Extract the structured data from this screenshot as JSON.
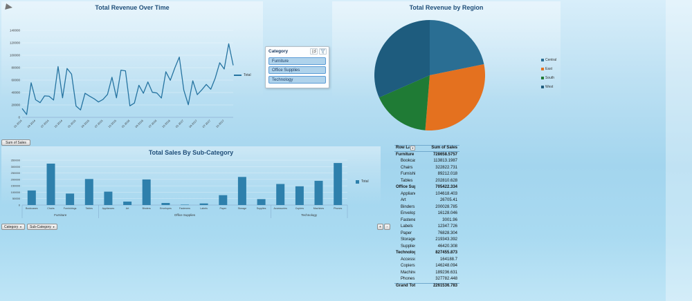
{
  "toolbar": {
    "sum_of_sales": "Sum of Sales",
    "category": "Category",
    "subcategory": "Sub-Category",
    "plus": "+",
    "minus": "-"
  },
  "slicer": {
    "title": "Category",
    "items": [
      "Furniture",
      "Office Supplies",
      "Technology"
    ]
  },
  "pivot": {
    "headers": [
      "Row Labels",
      "Sum of Sales"
    ],
    "rows": [
      {
        "label": "Furniture",
        "value": "728658.5757",
        "bold": true
      },
      {
        "label": "Bookcases",
        "value": "113813.1987",
        "indent": true
      },
      {
        "label": "Chairs",
        "value": "322822.731",
        "indent": true
      },
      {
        "label": "Furnishings",
        "value": "89212.018",
        "indent": true
      },
      {
        "label": "Tables",
        "value": "202810.628",
        "indent": true
      },
      {
        "label": "Office Supplies",
        "value": "705422.334",
        "bold": true
      },
      {
        "label": "Appliances",
        "value": "104618.403",
        "indent": true
      },
      {
        "label": "Art",
        "value": "26705.41",
        "indent": true
      },
      {
        "label": "Binders",
        "value": "200028.785",
        "indent": true
      },
      {
        "label": "Envelopes",
        "value": "16128.046",
        "indent": true
      },
      {
        "label": "Fasteners",
        "value": "3001.96",
        "indent": true
      },
      {
        "label": "Labels",
        "value": "12347.726",
        "indent": true
      },
      {
        "label": "Paper",
        "value": "76828.304",
        "indent": true
      },
      {
        "label": "Storage",
        "value": "219343.392",
        "indent": true
      },
      {
        "label": "Supplies",
        "value": "46420.308",
        "indent": true
      },
      {
        "label": "Technology",
        "value": "827455.873",
        "bold": true
      },
      {
        "label": "Accessories",
        "value": "164188.7",
        "indent": true
      },
      {
        "label": "Copiers",
        "value": "146248.094",
        "indent": true
      },
      {
        "label": "Machines",
        "value": "189236.631",
        "indent": true
      },
      {
        "label": "Phones",
        "value": "327782.448",
        "indent": true
      },
      {
        "label": "Grand Total",
        "value": "2261536.783",
        "bold": true,
        "grand": true
      }
    ]
  },
  "chart_data": [
    {
      "type": "line",
      "title": "Total Revenue Over Time",
      "series_name": "Total",
      "color": "#2573A0",
      "ylim": [
        0,
        140000
      ],
      "y_step": 20000,
      "tick_every": 3,
      "x": [
        "01-2014",
        "02-2014",
        "03-2014",
        "04-2014",
        "05-2014",
        "06-2014",
        "07-2014",
        "08-2014",
        "09-2014",
        "10-2014",
        "11-2014",
        "12-2014",
        "01-2015",
        "02-2015",
        "03-2015",
        "04-2015",
        "05-2015",
        "06-2015",
        "07-2015",
        "08-2015",
        "09-2015",
        "10-2015",
        "11-2015",
        "12-2015",
        "01-2016",
        "02-2016",
        "03-2016",
        "04-2016",
        "05-2016",
        "06-2016",
        "07-2016",
        "08-2016",
        "09-2016",
        "10-2016",
        "11-2016",
        "12-2016",
        "01-2017",
        "02-2017",
        "03-2017",
        "04-2017",
        "05-2017",
        "06-2017",
        "07-2017",
        "08-2017",
        "09-2017",
        "10-2017",
        "11-2017",
        "12-2017"
      ],
      "values": [
        14237,
        4520,
        55691,
        28295,
        23648,
        34595,
        33946,
        27909,
        81777,
        31453,
        78629,
        69545,
        18174,
        11951,
        38726,
        34195,
        30131,
        24797,
        28765,
        36898,
        64595,
        31404,
        75972,
        74919,
        18542,
        22978,
        51715,
        38750,
        56987,
        40344,
        39261,
        31115,
        73410,
        59687,
        79411,
        96999,
        43971,
        20301,
        58872,
        36521,
        44261,
        52981,
        45264,
        63120,
        87866,
        77776,
        118447,
        83829
      ]
    },
    {
      "type": "pie",
      "title": "Total Revenue by Region",
      "legend_position": "right",
      "slices": [
        {
          "label": "Central",
          "pct": 21.8,
          "color": "#2A6E93"
        },
        {
          "label": "East",
          "pct": 29.5,
          "color": "#E4711F"
        },
        {
          "label": "South",
          "pct": 17.1,
          "color": "#1F7B35"
        },
        {
          "label": "West",
          "pct": 31.6,
          "color": "#1E5C7E"
        }
      ]
    },
    {
      "type": "bar",
      "title": "Total Sales By Sub-Category",
      "series_name": "Total",
      "color": "#2E80AC",
      "ylim": [
        0,
        350000
      ],
      "y_step": 50000,
      "groups": [
        {
          "label": "Furniture",
          "categories": [
            "Bookcases",
            "Chairs",
            "Furnishings",
            "Tables"
          ],
          "values": [
            113813,
            322823,
            89212,
            202811
          ]
        },
        {
          "label": "Office Supplies",
          "categories": [
            "Appliances",
            "Art",
            "Binders",
            "Envelopes",
            "Fasteners",
            "Labels",
            "Paper",
            "Storage",
            "Supplies"
          ],
          "values": [
            104618,
            26705,
            200029,
            16128,
            3002,
            12348,
            76828,
            219343,
            46420
          ]
        },
        {
          "label": "Technology",
          "categories": [
            "Accessories",
            "Copiers",
            "Machines",
            "Phones"
          ],
          "values": [
            164189,
            146248,
            189237,
            327782
          ]
        }
      ]
    }
  ]
}
